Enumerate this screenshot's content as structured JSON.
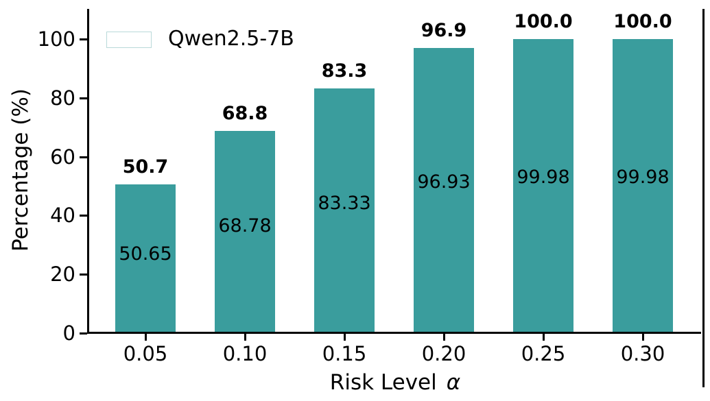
{
  "chart_data": {
    "type": "bar",
    "title": "",
    "xlabel": "Risk Level",
    "xlabel_symbol": "α",
    "ylabel": "Percentage (%)",
    "categories": [
      "0.05",
      "0.10",
      "0.15",
      "0.20",
      "0.25",
      "0.30"
    ],
    "series": [
      {
        "name": "Qwen2.5-7B",
        "values": [
          50.65,
          68.78,
          83.33,
          96.93,
          99.98,
          99.98
        ]
      }
    ],
    "bar_top_labels": [
      "50.7",
      "68.8",
      "83.3",
      "96.9",
      "100.0",
      "100.0"
    ],
    "bar_inside_labels": [
      "50.65",
      "68.78",
      "83.33",
      "96.93",
      "99.98",
      "99.98"
    ],
    "yticks": [
      0,
      20,
      40,
      60,
      80,
      100
    ],
    "ylim": [
      0,
      110
    ],
    "grid": false,
    "legend": {
      "label": "Qwen2.5-7B",
      "position": "upper left"
    },
    "colors": {
      "bar": "#3A9D9D",
      "text": "#000000",
      "background": "#ffffff"
    }
  }
}
